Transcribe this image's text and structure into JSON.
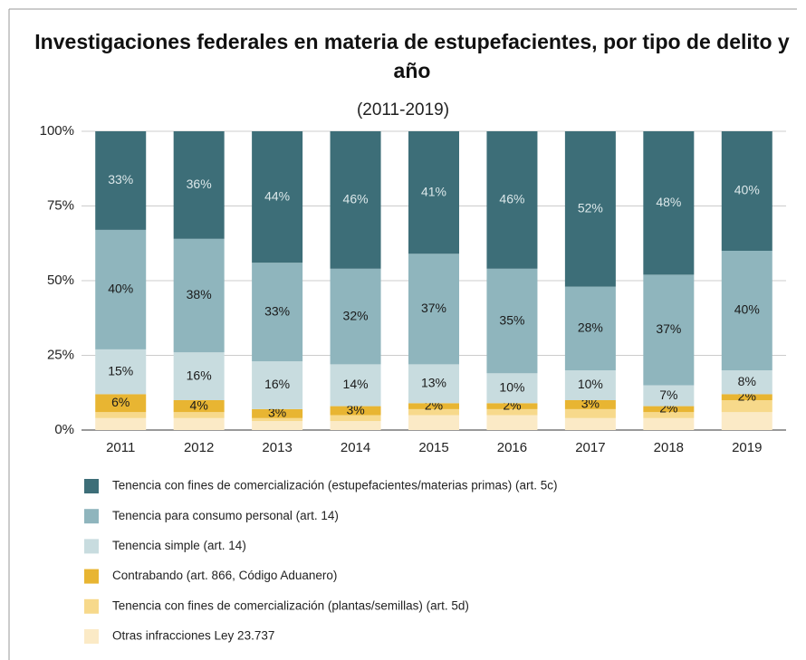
{
  "chart_data": {
    "type": "stacked_bar_100",
    "title": "Investigaciones federales en materia de estupefacientes, por tipo de delito y año",
    "subtitle": "(2011-2019)",
    "categories": [
      "2011",
      "2012",
      "2013",
      "2014",
      "2015",
      "2016",
      "2017",
      "2018",
      "2019"
    ],
    "ylim": [
      0,
      100
    ],
    "yticks": [
      {
        "value": 0,
        "label": "0%"
      },
      {
        "value": 25,
        "label": "25%"
      },
      {
        "value": 50,
        "label": "50%"
      },
      {
        "value": 75,
        "label": "75%"
      },
      {
        "value": 100,
        "label": "100%"
      }
    ],
    "grid": true,
    "legend": "bottom",
    "series": [
      {
        "name": "Tenencia con fines de comercialización (estupefacientes/materias primas) (art. 5c)",
        "color": "#3d6e78",
        "label_color": "#dce8ea",
        "values": [
          33,
          36,
          44,
          46,
          41,
          46,
          52,
          48,
          40
        ],
        "value_labels": [
          "33%",
          "36%",
          "44%",
          "46%",
          "41%",
          "46%",
          "52%",
          "48%",
          "40%"
        ]
      },
      {
        "name": "Tenencia para consumo personal (art. 14)",
        "color": "#8fb5bd",
        "label_color": "#1a1a1a",
        "values": [
          40,
          38,
          33,
          32,
          37,
          35,
          28,
          37,
          40
        ],
        "value_labels": [
          "40%",
          "38%",
          "33%",
          "32%",
          "37%",
          "35%",
          "28%",
          "37%",
          "40%"
        ]
      },
      {
        "name": "Tenencia simple (art. 14)",
        "color": "#c8dcdf",
        "label_color": "#1a1a1a",
        "values": [
          15,
          16,
          16,
          14,
          13,
          10,
          10,
          7,
          8
        ],
        "value_labels": [
          "15%",
          "16%",
          "16%",
          "14%",
          "13%",
          "10%",
          "10%",
          "7%",
          "8%"
        ]
      },
      {
        "name": "Contrabando (art. 866, Código Aduanero)",
        "color": "#e8b532",
        "label_color": "#1a1a1a",
        "values": [
          6,
          4,
          3,
          3,
          2,
          2,
          3,
          2,
          2
        ],
        "value_labels": [
          "6%",
          "4%",
          "3%",
          "3%",
          "2%",
          "2%",
          "3%",
          "2%",
          "2%"
        ]
      },
      {
        "name": "Tenencia con fines de comercialización (plantas/semillas) (art. 5d)",
        "color": "#f7d98b",
        "values": [
          2,
          2,
          1,
          2,
          2,
          2,
          3,
          2,
          4
        ]
      },
      {
        "name": "Otras infracciones Ley 23.737",
        "color": "#fbeac6",
        "values": [
          4,
          4,
          3,
          3,
          5,
          5,
          4,
          4,
          6
        ]
      }
    ]
  }
}
